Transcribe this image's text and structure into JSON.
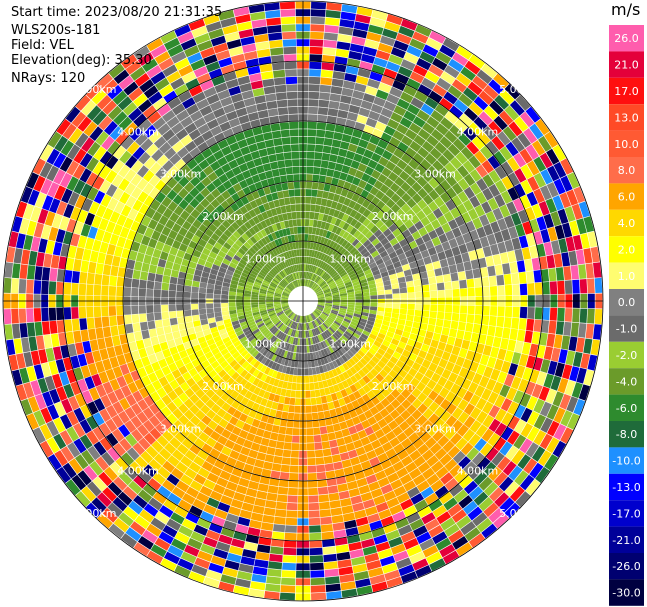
{
  "header": {
    "start_time": "Start time: 2023/08/20 21:31:35",
    "instrument": "WLS200s-181",
    "field": "Field: VEL",
    "elevation": "Elevation(deg): 35.30",
    "nrays": "NRays: 120"
  },
  "colorbar": {
    "unit": "m/s",
    "bins": [
      {
        "label": "26.0",
        "color": "#ff5dad"
      },
      {
        "label": "21.0",
        "color": "#e4003a"
      },
      {
        "label": "17.0",
        "color": "#ff0f0f"
      },
      {
        "label": "13.0",
        "color": "#ff4a26"
      },
      {
        "label": "10.0",
        "color": "#ff5a33"
      },
      {
        "label": "8.0",
        "color": "#ff6d4a"
      },
      {
        "label": "6.0",
        "color": "#ffa500"
      },
      {
        "label": "4.0",
        "color": "#ffd800"
      },
      {
        "label": "2.0",
        "color": "#ffff00"
      },
      {
        "label": "1.0",
        "color": "#fffd70"
      },
      {
        "label": "0.0",
        "color": "#808080"
      },
      {
        "label": "-1.0",
        "color": "#6b6b6b"
      },
      {
        "label": "-2.0",
        "color": "#9acd32"
      },
      {
        "label": "-4.0",
        "color": "#6b9b2a"
      },
      {
        "label": "-6.0",
        "color": "#2e8b2e"
      },
      {
        "label": "-8.0",
        "color": "#1f6b3a"
      },
      {
        "label": "-10.0",
        "color": "#1e90ff"
      },
      {
        "label": "-13.0",
        "color": "#0000ff"
      },
      {
        "label": "-17.0",
        "color": "#0000cd"
      },
      {
        "label": "-21.0",
        "color": "#000099"
      },
      {
        "label": "-26.0",
        "color": "#000070"
      },
      {
        "label": "-30.0",
        "color": "#000040"
      }
    ]
  },
  "chart_data": {
    "type": "heatmap",
    "projection": "polar-ppi",
    "field": "VEL",
    "rays": 120,
    "range_max_km": 5.0,
    "range_rings_km": [
      1,
      2,
      3,
      4,
      5
    ],
    "range_ring_labels": [
      "1.00km",
      "2.00km",
      "3.00km",
      "4.00km",
      "5.00km"
    ],
    "crosshair": true,
    "noise_beyond_km": 4.0
  }
}
